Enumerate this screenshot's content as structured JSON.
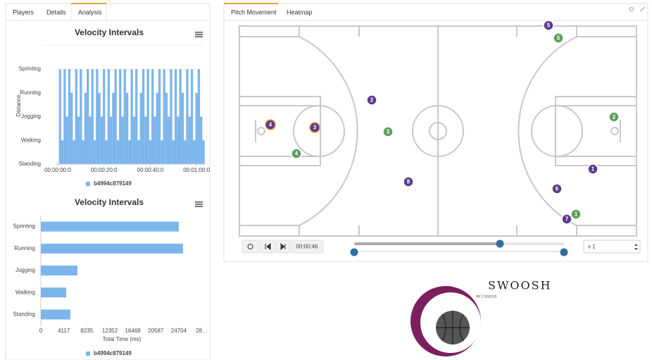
{
  "tabs_left": [
    "Players",
    "Details",
    "Analysis"
  ],
  "tabs_right": [
    "Pitch Movement",
    "Heatmap"
  ],
  "chart_data": [
    {
      "type": "area",
      "title": "Velocity Intervals",
      "y_label": "Distance",
      "x": [
        0,
        1,
        2,
        3,
        4,
        5,
        6,
        7,
        8,
        9,
        10,
        11,
        12,
        13,
        14,
        15,
        16,
        17,
        18,
        19,
        20,
        21,
        22,
        23,
        24,
        25,
        26,
        27,
        28,
        29,
        30,
        31,
        32,
        33,
        34,
        35,
        36,
        37,
        38,
        39,
        40,
        41,
        42,
        43,
        44,
        45,
        46,
        47,
        48,
        49,
        50,
        51,
        52,
        53,
        54,
        55,
        56,
        57,
        58,
        59,
        60,
        61,
        62,
        63
      ],
      "series": [
        {
          "name": "b4994c879149",
          "color": "#7cb5ec",
          "values": [
            0,
            4,
            1,
            4,
            2,
            4,
            3,
            1,
            4,
            2,
            4,
            1,
            3,
            4,
            2,
            4,
            1,
            4,
            3,
            2,
            4,
            1,
            4,
            2,
            3,
            4,
            1,
            4,
            2,
            4,
            3,
            1,
            4,
            2,
            4,
            1,
            3,
            4,
            2,
            4,
            1,
            4,
            2,
            3,
            4,
            1,
            4,
            3,
            2,
            4,
            1,
            4,
            2,
            4,
            3,
            1,
            4,
            2,
            4,
            1,
            3,
            4,
            2,
            1
          ]
        }
      ],
      "xlim": [
        0,
        63
      ],
      "xticks": [
        {
          "value": 0,
          "label": "00:00:00:0"
        },
        {
          "value": 20,
          "label": "00:00:20:0"
        },
        {
          "value": 40,
          "label": "00:00:40:0"
        },
        {
          "value": 60,
          "label": "00:01:00:0"
        }
      ],
      "ylim": [
        0,
        4
      ],
      "yticks": [
        {
          "value": 0,
          "label": "Standing"
        },
        {
          "value": 1,
          "label": "Walking"
        },
        {
          "value": 2,
          "label": "Jogging"
        },
        {
          "value": 3,
          "label": "Running"
        },
        {
          "value": 4,
          "label": "Sprinting"
        }
      ]
    },
    {
      "type": "bar",
      "orientation": "horizontal",
      "title": "Velocity Intervals",
      "x_label": "Total Time (ms)",
      "categories": [
        "Sprinting",
        "Running",
        "Jogging",
        "Walking",
        "Standing"
      ],
      "series": [
        {
          "name": "b4994c879149",
          "color": "#7cb5ec",
          "values": [
            24700,
            25460,
            6550,
            4540,
            5290
          ]
        }
      ],
      "xlim": [
        0,
        29000
      ],
      "xticks": [
        0,
        4117,
        8235,
        12352,
        16469,
        20587,
        24704,
        {
          "value": 28821,
          "label": "28…"
        }
      ]
    }
  ],
  "pitch": {
    "players": [
      {
        "label": "5",
        "color": "#5b3a8c"
      },
      {
        "label": "5",
        "color": "#5a9e5a"
      },
      {
        "label": "2",
        "color": "#5b3a8c"
      },
      {
        "label": "3",
        "color": "#5a9e5a"
      },
      {
        "label": "4",
        "color": "#5b3a8c"
      },
      {
        "label": "3",
        "color": "#5b3a8c"
      },
      {
        "label": "4",
        "color": "#5a9e5a"
      },
      {
        "label": "2",
        "color": "#5a9e5a"
      },
      {
        "label": "1",
        "color": "#5b3a8c"
      },
      {
        "label": "8",
        "color": "#5b3a8c"
      },
      {
        "label": "6",
        "color": "#5b3a8c"
      },
      {
        "label": "1",
        "color": "#5a9e5a"
      },
      {
        "label": "7",
        "color": "#5b3a8c"
      }
    ]
  },
  "controls": {
    "time": "00:00:46",
    "speed": "x 1"
  },
  "logo": {
    "name": "SWOOSH",
    "byline": "BY CIDESD"
  }
}
